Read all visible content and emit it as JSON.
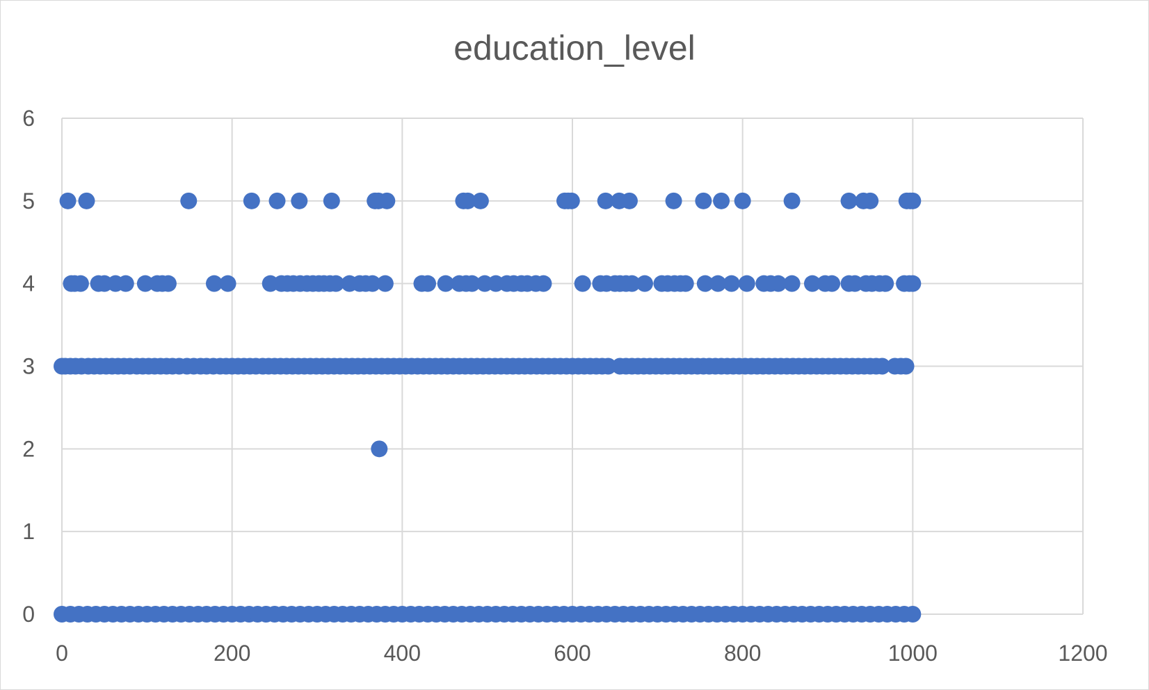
{
  "chart_data": {
    "type": "scatter",
    "title": "education_level",
    "xlabel": "",
    "ylabel": "",
    "xlim": [
      0,
      1200
    ],
    "ylim": [
      0,
      6
    ],
    "xticks": [
      0,
      200,
      400,
      600,
      800,
      1000,
      1200
    ],
    "yticks": [
      0,
      1,
      2,
      3,
      4,
      5,
      6
    ],
    "grid": true,
    "legend": "none",
    "marker_color": "#4472c4",
    "series": [
      {
        "points": [
          [
            7,
            5
          ],
          [
            29,
            5
          ],
          [
            149,
            5
          ],
          [
            223,
            5
          ],
          [
            253,
            5
          ],
          [
            279,
            5
          ],
          [
            317,
            5
          ],
          [
            368,
            5
          ],
          [
            372,
            5
          ],
          [
            382,
            5
          ],
          [
            472,
            5
          ],
          [
            477,
            5
          ],
          [
            492,
            5
          ],
          [
            591,
            5
          ],
          [
            595,
            5
          ],
          [
            599,
            5
          ],
          [
            639,
            5
          ],
          [
            655,
            5
          ],
          [
            667,
            5
          ],
          [
            719,
            5
          ],
          [
            754,
            5
          ],
          [
            775,
            5
          ],
          [
            800,
            5
          ],
          [
            858,
            5
          ],
          [
            925,
            5
          ],
          [
            942,
            5
          ],
          [
            950,
            5
          ],
          [
            993,
            5
          ],
          [
            997,
            5
          ],
          [
            1000,
            5
          ],
          [
            11,
            4
          ],
          [
            15,
            4
          ],
          [
            22,
            4
          ],
          [
            43,
            4
          ],
          [
            50,
            4
          ],
          [
            63,
            4
          ],
          [
            75,
            4
          ],
          [
            98,
            4
          ],
          [
            112,
            4
          ],
          [
            118,
            4
          ],
          [
            125,
            4
          ],
          [
            179,
            4
          ],
          [
            195,
            4
          ],
          [
            245,
            4
          ],
          [
            258,
            4
          ],
          [
            265,
            4
          ],
          [
            272,
            4
          ],
          [
            280,
            4
          ],
          [
            288,
            4
          ],
          [
            295,
            4
          ],
          [
            302,
            4
          ],
          [
            308,
            4
          ],
          [
            315,
            4
          ],
          [
            322,
            4
          ],
          [
            338,
            4
          ],
          [
            350,
            4
          ],
          [
            357,
            4
          ],
          [
            365,
            4
          ],
          [
            380,
            4
          ],
          [
            423,
            4
          ],
          [
            430,
            4
          ],
          [
            451,
            4
          ],
          [
            467,
            4
          ],
          [
            475,
            4
          ],
          [
            482,
            4
          ],
          [
            497,
            4
          ],
          [
            510,
            4
          ],
          [
            523,
            4
          ],
          [
            531,
            4
          ],
          [
            540,
            4
          ],
          [
            547,
            4
          ],
          [
            557,
            4
          ],
          [
            566,
            4
          ],
          [
            612,
            4
          ],
          [
            633,
            4
          ],
          [
            640,
            4
          ],
          [
            650,
            4
          ],
          [
            656,
            4
          ],
          [
            663,
            4
          ],
          [
            670,
            4
          ],
          [
            685,
            4
          ],
          [
            705,
            4
          ],
          [
            712,
            4
          ],
          [
            720,
            4
          ],
          [
            727,
            4
          ],
          [
            733,
            4
          ],
          [
            756,
            4
          ],
          [
            771,
            4
          ],
          [
            787,
            4
          ],
          [
            805,
            4
          ],
          [
            825,
            4
          ],
          [
            833,
            4
          ],
          [
            842,
            4
          ],
          [
            858,
            4
          ],
          [
            882,
            4
          ],
          [
            897,
            4
          ],
          [
            905,
            4
          ],
          [
            925,
            4
          ],
          [
            932,
            4
          ],
          [
            945,
            4
          ],
          [
            952,
            4
          ],
          [
            961,
            4
          ],
          [
            968,
            4
          ],
          [
            990,
            4
          ],
          [
            996,
            4
          ],
          [
            1000,
            4
          ],
          [
            0,
            3
          ],
          [
            4,
            3
          ],
          [
            10,
            3
          ],
          [
            16,
            3
          ],
          [
            23,
            3
          ],
          [
            31,
            3
          ],
          [
            38,
            3
          ],
          [
            45,
            3
          ],
          [
            52,
            3
          ],
          [
            59,
            3
          ],
          [
            66,
            3
          ],
          [
            73,
            3
          ],
          [
            80,
            3
          ],
          [
            88,
            3
          ],
          [
            95,
            3
          ],
          [
            102,
            3
          ],
          [
            109,
            3
          ],
          [
            116,
            3
          ],
          [
            123,
            3
          ],
          [
            130,
            3
          ],
          [
            138,
            3
          ],
          [
            147,
            3
          ],
          [
            155,
            3
          ],
          [
            163,
            3
          ],
          [
            170,
            3
          ],
          [
            178,
            3
          ],
          [
            186,
            3
          ],
          [
            193,
            3
          ],
          [
            200,
            3
          ],
          [
            207,
            3
          ],
          [
            214,
            3
          ],
          [
            221,
            3
          ],
          [
            228,
            3
          ],
          [
            236,
            3
          ],
          [
            243,
            3
          ],
          [
            250,
            3
          ],
          [
            257,
            3
          ],
          [
            264,
            3
          ],
          [
            271,
            3
          ],
          [
            278,
            3
          ],
          [
            285,
            3
          ],
          [
            292,
            3
          ],
          [
            299,
            3
          ],
          [
            306,
            3
          ],
          [
            313,
            3
          ],
          [
            320,
            3
          ],
          [
            327,
            3
          ],
          [
            334,
            3
          ],
          [
            341,
            3
          ],
          [
            348,
            3
          ],
          [
            355,
            3
          ],
          [
            362,
            3
          ],
          [
            369,
            3
          ],
          [
            376,
            3
          ],
          [
            383,
            3
          ],
          [
            390,
            3
          ],
          [
            397,
            3
          ],
          [
            404,
            3
          ],
          [
            411,
            3
          ],
          [
            418,
            3
          ],
          [
            425,
            3
          ],
          [
            432,
            3
          ],
          [
            439,
            3
          ],
          [
            446,
            3
          ],
          [
            453,
            3
          ],
          [
            460,
            3
          ],
          [
            467,
            3
          ],
          [
            474,
            3
          ],
          [
            481,
            3
          ],
          [
            488,
            3
          ],
          [
            495,
            3
          ],
          [
            502,
            3
          ],
          [
            509,
            3
          ],
          [
            516,
            3
          ],
          [
            523,
            3
          ],
          [
            530,
            3
          ],
          [
            537,
            3
          ],
          [
            544,
            3
          ],
          [
            551,
            3
          ],
          [
            558,
            3
          ],
          [
            565,
            3
          ],
          [
            572,
            3
          ],
          [
            579,
            3
          ],
          [
            586,
            3
          ],
          [
            593,
            3
          ],
          [
            600,
            3
          ],
          [
            607,
            3
          ],
          [
            614,
            3
          ],
          [
            621,
            3
          ],
          [
            628,
            3
          ],
          [
            635,
            3
          ],
          [
            642,
            3
          ],
          [
            656,
            3
          ],
          [
            663,
            3
          ],
          [
            670,
            3
          ],
          [
            677,
            3
          ],
          [
            684,
            3
          ],
          [
            691,
            3
          ],
          [
            698,
            3
          ],
          [
            705,
            3
          ],
          [
            712,
            3
          ],
          [
            719,
            3
          ],
          [
            726,
            3
          ],
          [
            733,
            3
          ],
          [
            740,
            3
          ],
          [
            747,
            3
          ],
          [
            754,
            3
          ],
          [
            761,
            3
          ],
          [
            768,
            3
          ],
          [
            775,
            3
          ],
          [
            782,
            3
          ],
          [
            789,
            3
          ],
          [
            796,
            3
          ],
          [
            803,
            3
          ],
          [
            810,
            3
          ],
          [
            817,
            3
          ],
          [
            824,
            3
          ],
          [
            831,
            3
          ],
          [
            838,
            3
          ],
          [
            845,
            3
          ],
          [
            852,
            3
          ],
          [
            859,
            3
          ],
          [
            866,
            3
          ],
          [
            873,
            3
          ],
          [
            880,
            3
          ],
          [
            887,
            3
          ],
          [
            894,
            3
          ],
          [
            901,
            3
          ],
          [
            908,
            3
          ],
          [
            915,
            3
          ],
          [
            922,
            3
          ],
          [
            929,
            3
          ],
          [
            936,
            3
          ],
          [
            943,
            3
          ],
          [
            950,
            3
          ],
          [
            957,
            3
          ],
          [
            964,
            3
          ],
          [
            979,
            3
          ],
          [
            986,
            3
          ],
          [
            992,
            3
          ],
          [
            373,
            2
          ],
          [
            0,
            0
          ],
          [
            10,
            0
          ],
          [
            20,
            0
          ],
          [
            30,
            0
          ],
          [
            40,
            0
          ],
          [
            50,
            0
          ],
          [
            60,
            0
          ],
          [
            70,
            0
          ],
          [
            80,
            0
          ],
          [
            90,
            0
          ],
          [
            100,
            0
          ],
          [
            110,
            0
          ],
          [
            120,
            0
          ],
          [
            130,
            0
          ],
          [
            140,
            0
          ],
          [
            150,
            0
          ],
          [
            160,
            0
          ],
          [
            170,
            0
          ],
          [
            180,
            0
          ],
          [
            190,
            0
          ],
          [
            200,
            0
          ],
          [
            210,
            0
          ],
          [
            220,
            0
          ],
          [
            230,
            0
          ],
          [
            240,
            0
          ],
          [
            250,
            0
          ],
          [
            260,
            0
          ],
          [
            270,
            0
          ],
          [
            280,
            0
          ],
          [
            290,
            0
          ],
          [
            300,
            0
          ],
          [
            310,
            0
          ],
          [
            320,
            0
          ],
          [
            330,
            0
          ],
          [
            340,
            0
          ],
          [
            350,
            0
          ],
          [
            360,
            0
          ],
          [
            370,
            0
          ],
          [
            380,
            0
          ],
          [
            390,
            0
          ],
          [
            400,
            0
          ],
          [
            410,
            0
          ],
          [
            420,
            0
          ],
          [
            430,
            0
          ],
          [
            440,
            0
          ],
          [
            450,
            0
          ],
          [
            460,
            0
          ],
          [
            470,
            0
          ],
          [
            480,
            0
          ],
          [
            490,
            0
          ],
          [
            500,
            0
          ],
          [
            510,
            0
          ],
          [
            520,
            0
          ],
          [
            530,
            0
          ],
          [
            540,
            0
          ],
          [
            550,
            0
          ],
          [
            560,
            0
          ],
          [
            570,
            0
          ],
          [
            580,
            0
          ],
          [
            590,
            0
          ],
          [
            600,
            0
          ],
          [
            610,
            0
          ],
          [
            620,
            0
          ],
          [
            630,
            0
          ],
          [
            640,
            0
          ],
          [
            650,
            0
          ],
          [
            660,
            0
          ],
          [
            670,
            0
          ],
          [
            680,
            0
          ],
          [
            690,
            0
          ],
          [
            700,
            0
          ],
          [
            710,
            0
          ],
          [
            720,
            0
          ],
          [
            730,
            0
          ],
          [
            740,
            0
          ],
          [
            750,
            0
          ],
          [
            760,
            0
          ],
          [
            770,
            0
          ],
          [
            780,
            0
          ],
          [
            790,
            0
          ],
          [
            800,
            0
          ],
          [
            810,
            0
          ],
          [
            820,
            0
          ],
          [
            830,
            0
          ],
          [
            840,
            0
          ],
          [
            850,
            0
          ],
          [
            860,
            0
          ],
          [
            870,
            0
          ],
          [
            880,
            0
          ],
          [
            890,
            0
          ],
          [
            900,
            0
          ],
          [
            910,
            0
          ],
          [
            920,
            0
          ],
          [
            930,
            0
          ],
          [
            940,
            0
          ],
          [
            950,
            0
          ],
          [
            960,
            0
          ],
          [
            970,
            0
          ],
          [
            980,
            0
          ],
          [
            990,
            0
          ],
          [
            1000,
            0
          ]
        ]
      }
    ]
  }
}
